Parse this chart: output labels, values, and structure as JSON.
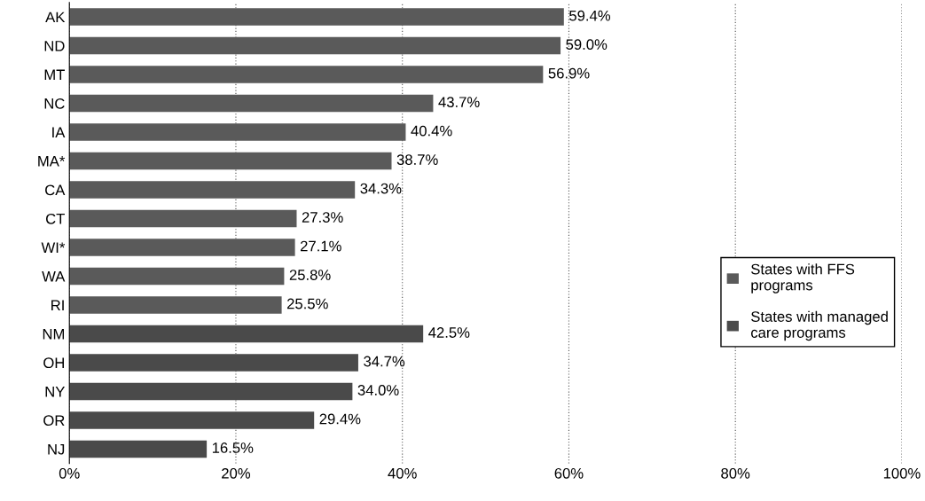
{
  "chart_data": {
    "type": "bar",
    "orientation": "horizontal",
    "categories": [
      "AK",
      "ND",
      "MT",
      "NC",
      "IA",
      "MA*",
      "CA",
      "CT",
      "WI*",
      "WA",
      "RI",
      "NM",
      "OH",
      "NY",
      "OR",
      "NJ"
    ],
    "series": [
      {
        "name": "States with FFS programs",
        "color": "#5a5a5a",
        "values": [
          59.4,
          59.0,
          56.9,
          43.7,
          40.4,
          38.7,
          34.3,
          27.3,
          27.1,
          25.8,
          25.5,
          null,
          null,
          null,
          null,
          null
        ],
        "value_labels": [
          "59.4%",
          "59.0%",
          "56.9%",
          "43.7%",
          "40.4%",
          "38.7%",
          "34.3%",
          "27.3%",
          "27.1%",
          "25.8%",
          "25.5%",
          null,
          null,
          null,
          null,
          null
        ]
      },
      {
        "name": "States with managed care programs",
        "color": "#4a4a4a",
        "values": [
          null,
          null,
          null,
          null,
          null,
          null,
          null,
          null,
          null,
          null,
          null,
          42.5,
          34.7,
          34.0,
          29.4,
          16.5
        ],
        "value_labels": [
          null,
          null,
          null,
          null,
          null,
          null,
          null,
          null,
          null,
          null,
          null,
          "42.5%",
          "34.7%",
          "34.0%",
          "29.4%",
          "16.5%"
        ]
      }
    ],
    "xlim": [
      0,
      100
    ],
    "xticks": [
      {
        "value": 0,
        "label": "0%"
      },
      {
        "value": 20,
        "label": "20%"
      },
      {
        "value": 40,
        "label": "40%"
      },
      {
        "value": 60,
        "label": "60%"
      },
      {
        "value": 80,
        "label": "80%"
      },
      {
        "value": 100,
        "label": "100%"
      }
    ],
    "grid": "x",
    "legend": "right"
  }
}
